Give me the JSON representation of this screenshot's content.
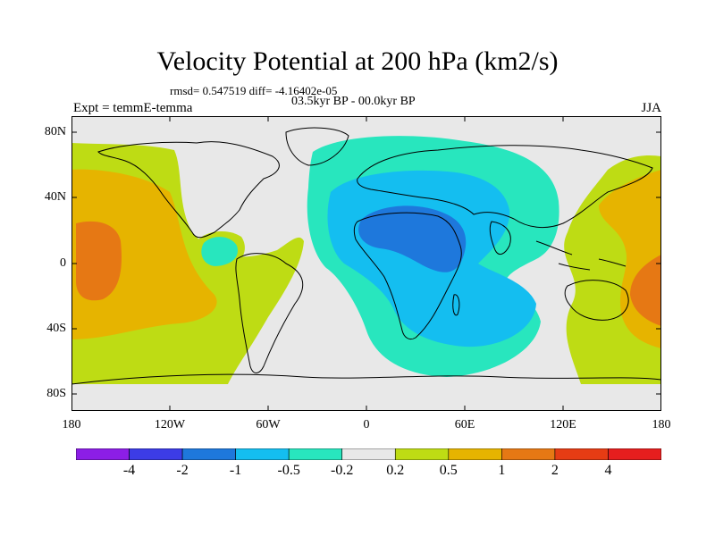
{
  "header": {
    "title": "Velocity Potential at 200 hPa (km2/s)",
    "stats": "rmsd= 0.547519 diff= -4.16402e-05",
    "period": "03.5kyr BP - 00.0kyr BP",
    "experiment": "Expt = temmE-temma",
    "season": "JJA"
  },
  "map": {
    "projection": "cylindrical equidistant",
    "lat_range": [
      -90,
      90
    ],
    "lon_range": [
      -180,
      180
    ],
    "lat_ticks": [
      "80N",
      "40N",
      "0",
      "40S",
      "80S"
    ],
    "lon_ticks": [
      "180",
      "120W",
      "60W",
      "0",
      "60E",
      "120E",
      "180"
    ],
    "land_color": "#e8e8e8",
    "coastline_color": "#000000"
  },
  "colorbar": {
    "levels": [
      "-4",
      "-2",
      "-1",
      "-0.5",
      "-0.2",
      "0.2",
      "0.5",
      "1",
      "2",
      "4"
    ],
    "colors": [
      "#8c1ee6",
      "#3c3ce6",
      "#1e78dc",
      "#14bef0",
      "#28e6be",
      "#e8e8e8",
      "#bedc14",
      "#e6b400",
      "#e67814",
      "#e63c14",
      "#e61e1e"
    ]
  }
}
